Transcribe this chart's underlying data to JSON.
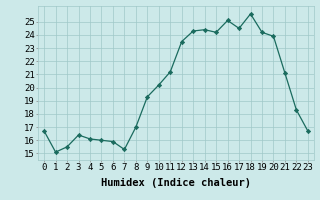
{
  "x": [
    0,
    1,
    2,
    3,
    4,
    5,
    6,
    7,
    8,
    9,
    10,
    11,
    12,
    13,
    14,
    15,
    16,
    17,
    18,
    19,
    20,
    21,
    22,
    23
  ],
  "y": [
    16.7,
    15.1,
    15.5,
    16.4,
    16.1,
    16.0,
    15.9,
    15.3,
    17.0,
    19.3,
    20.2,
    21.2,
    23.5,
    24.3,
    24.4,
    24.2,
    25.1,
    24.5,
    25.6,
    24.2,
    23.9,
    21.1,
    18.3,
    16.7
  ],
  "line_color": "#1a6b5e",
  "marker": "D",
  "marker_size": 2.2,
  "bg_color": "#cce9e9",
  "grid_color": "#a0c8c8",
  "xlabel": "Humidex (Indice chaleur)",
  "ylim": [
    14.5,
    26.2
  ],
  "xlim": [
    -0.5,
    23.5
  ],
  "yticks": [
    15,
    16,
    17,
    18,
    19,
    20,
    21,
    22,
    23,
    24,
    25
  ],
  "xtick_labels": [
    "0",
    "1",
    "2",
    "3",
    "4",
    "5",
    "6",
    "7",
    "8",
    "9",
    "10",
    "11",
    "12",
    "13",
    "14",
    "15",
    "16",
    "17",
    "18",
    "19",
    "20",
    "21",
    "22",
    "23"
  ],
  "xlabel_fontsize": 7.5,
  "tick_fontsize": 6.5
}
